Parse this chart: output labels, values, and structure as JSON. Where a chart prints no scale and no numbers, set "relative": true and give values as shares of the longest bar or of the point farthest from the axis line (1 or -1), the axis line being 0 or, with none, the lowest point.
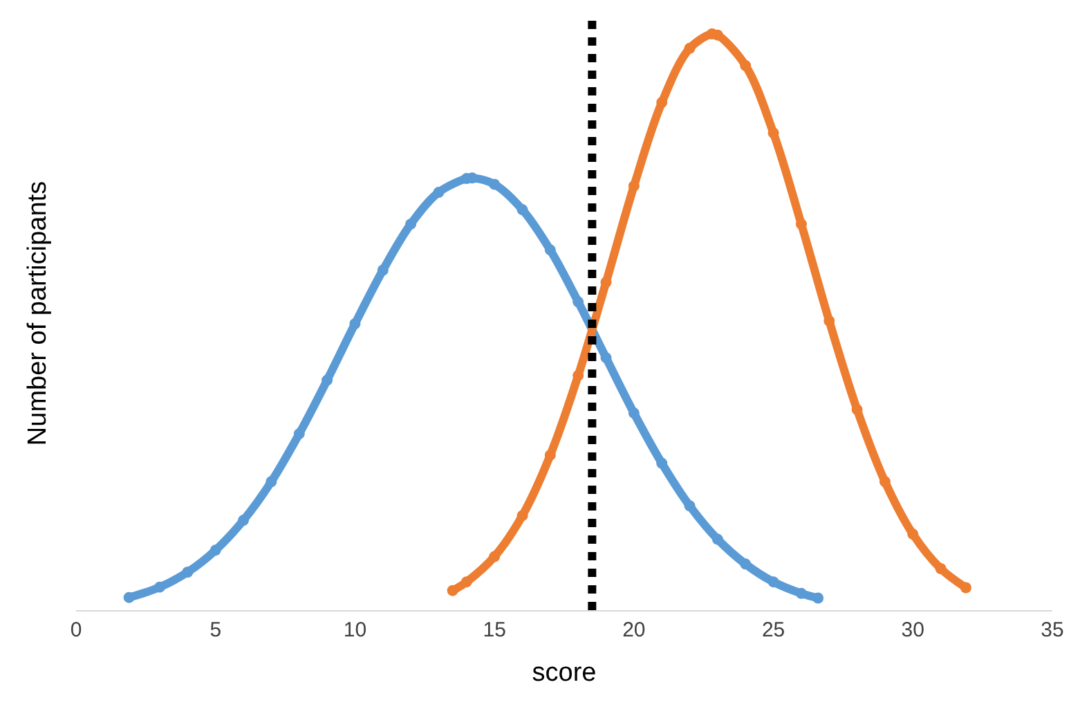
{
  "chart_data": {
    "type": "line",
    "relative": true,
    "xlabel": "score",
    "ylabel": "Number of participants",
    "xlim": [
      0,
      35
    ],
    "xticks": [
      0,
      5,
      10,
      15,
      20,
      25,
      30,
      35
    ],
    "marker": "circle",
    "line_style": "solid",
    "tick_labels": "x",
    "series": [
      {
        "color": "#5b9bd5",
        "x": [
          1.9,
          3,
          4,
          5,
          6,
          7,
          8,
          9,
          10,
          11,
          12,
          13,
          14,
          14.2,
          15,
          16,
          17,
          18,
          19,
          20,
          21,
          22,
          23,
          24,
          25,
          26,
          26.6
        ],
        "values": [
          0.022,
          0.04,
          0.066,
          0.104,
          0.156,
          0.223,
          0.306,
          0.399,
          0.497,
          0.59,
          0.67,
          0.725,
          0.749,
          0.75,
          0.739,
          0.695,
          0.625,
          0.535,
          0.438,
          0.342,
          0.255,
          0.181,
          0.123,
          0.08,
          0.049,
          0.029,
          0.021
        ]
      },
      {
        "color": "#ed7d31",
        "x": [
          13.5,
          14,
          15,
          16,
          17,
          18,
          19,
          20,
          21,
          22,
          22.8,
          23,
          24,
          25,
          26,
          27,
          28,
          29,
          30,
          31,
          31.9
        ],
        "values": [
          0.034,
          0.049,
          0.093,
          0.164,
          0.269,
          0.407,
          0.569,
          0.736,
          0.881,
          0.975,
          1,
          0.998,
          0.945,
          0.828,
          0.67,
          0.502,
          0.348,
          0.223,
          0.132,
          0.072,
          0.039
        ]
      }
    ],
    "ref_lines": [
      {
        "axis": "x",
        "value": 18.5,
        "color": "#000000",
        "line_style": "dotted"
      }
    ]
  }
}
